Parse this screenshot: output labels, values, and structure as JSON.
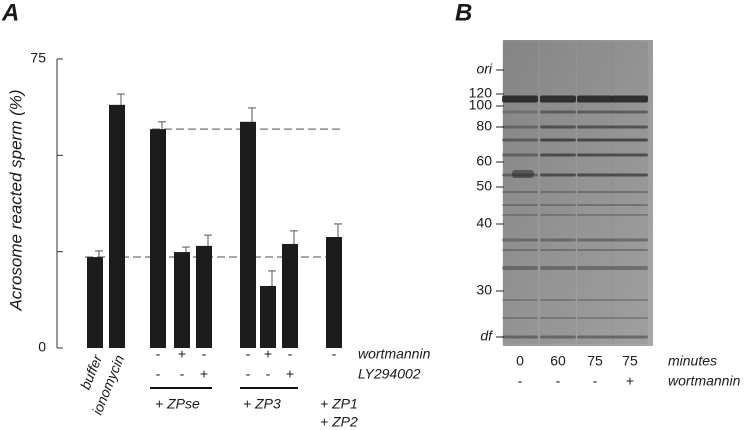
{
  "chart_data": {
    "type": "bar",
    "panel_label": "A",
    "y_label": "Acrosome reacted sperm (%)",
    "categories": [
      "buffer",
      "ionomycin",
      null,
      null,
      null,
      null,
      null,
      null,
      null
    ],
    "values": [
      23.6,
      63.1,
      56.8,
      24.9,
      26.5,
      58.7,
      16.1,
      27.0,
      28.8
    ],
    "errors": [
      1.6,
      2.8,
      1.9,
      1.3,
      2.8,
      3.6,
      3.9,
      3.4,
      3.4
    ],
    "color": "#1c1c1c",
    "ylim": [
      0,
      75
    ],
    "yticks": [
      0,
      75
    ],
    "minor_yticks": [
      25,
      50
    ],
    "reference_lines": true,
    "treatment_rows": [
      {
        "name": "wortmannin",
        "marks": [
          null,
          null,
          "-",
          "+",
          "-",
          "-",
          "+",
          "-",
          "-"
        ]
      },
      {
        "name": "LY294002",
        "marks": [
          null,
          null,
          "-",
          "-",
          "+",
          "-",
          "-",
          "+",
          null
        ]
      }
    ],
    "groups": [
      [
        "+ ZPse"
      ],
      [
        "+ ZP3"
      ],
      [
        "+ ZP1",
        "+ ZP2"
      ]
    ]
  },
  "gel": {
    "panel_label": "B",
    "markers": [
      "ori",
      "120",
      "100",
      "80",
      "60",
      "50",
      "40",
      "30",
      "df"
    ],
    "lanes": [
      "0",
      "60",
      "75",
      "75"
    ],
    "lanes_label": "minutes",
    "treatment": [
      "-",
      "-",
      "-",
      "+"
    ],
    "treatment_label": "wortmannin"
  }
}
